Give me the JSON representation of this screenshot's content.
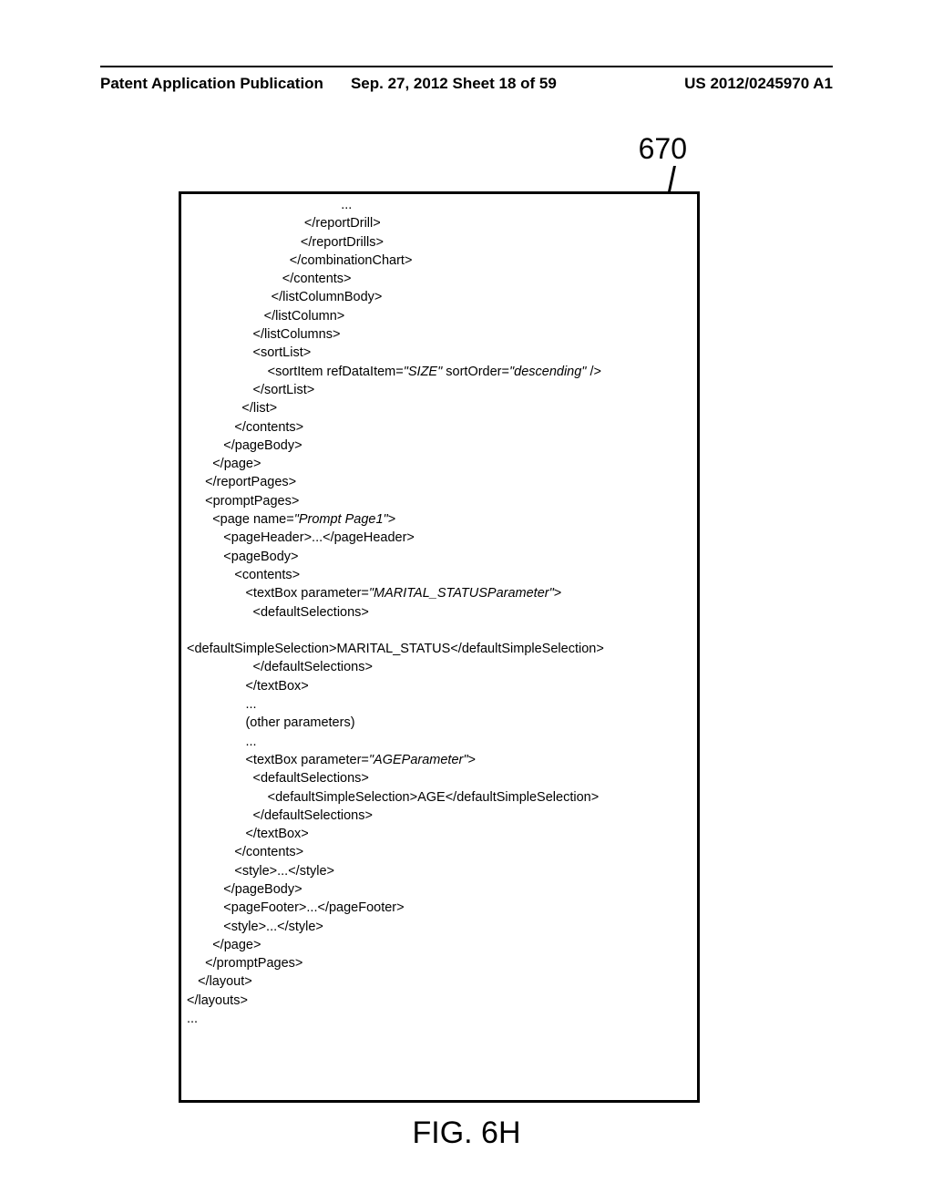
{
  "header": {
    "left": "Patent Application Publication",
    "center": "Sep. 27, 2012  Sheet 18 of 59",
    "right": "US 2012/0245970 A1"
  },
  "figure_number": "670",
  "figure_caption": "FIG. 6H",
  "code": {
    "lines": [
      {
        "indent": 270,
        "text": "..."
      },
      {
        "indent": 210,
        "text": "</reportDrill>"
      },
      {
        "indent": 200,
        "text": "</reportDrills>"
      },
      {
        "indent": 180,
        "text": "</combinationChart>"
      },
      {
        "indent": 168,
        "text": "</contents>"
      },
      {
        "indent": 150,
        "text": "</listColumnBody>"
      },
      {
        "indent": 136,
        "text": "</listColumn>"
      },
      {
        "indent": 120,
        "text": "</listColumns>"
      },
      {
        "indent": 120,
        "text": "<sortList>"
      },
      {
        "indent": 142,
        "parts": [
          {
            "t": "<sortItem refDataItem="
          },
          {
            "t": "\"SIZE\"",
            "i": true
          },
          {
            "t": " sortOrder="
          },
          {
            "t": "\"descending\"",
            "i": true
          },
          {
            "t": " />"
          }
        ]
      },
      {
        "indent": 120,
        "text": "</sortList>"
      },
      {
        "indent": 100,
        "text": "</list>"
      },
      {
        "indent": 84,
        "text": "</contents>"
      },
      {
        "indent": 66,
        "text": "</pageBody>"
      },
      {
        "indent": 48,
        "text": "</page>"
      },
      {
        "indent": 32,
        "text": "</reportPages>"
      },
      {
        "indent": 32,
        "text": "<promptPages>"
      },
      {
        "indent": 48,
        "parts": [
          {
            "t": "<page name="
          },
          {
            "t": "\"Prompt Page1\"",
            "i": true
          },
          {
            "t": ">"
          }
        ]
      },
      {
        "indent": 66,
        "text": "<pageHeader>...</pageHeader>"
      },
      {
        "indent": 66,
        "text": "<pageBody>"
      },
      {
        "indent": 84,
        "text": "<contents>"
      },
      {
        "indent": 102,
        "parts": [
          {
            "t": "<textBox parameter="
          },
          {
            "t": "\"MARITAL_STATUSParameter\"",
            "i": true
          },
          {
            "t": ">"
          }
        ]
      },
      {
        "indent": 120,
        "text": "<defaultSelections>"
      },
      {
        "indent": 0,
        "text": ""
      },
      {
        "indent": 2,
        "text": "<defaultSimpleSelection>MARITAL_STATUS</defaultSimpleSelection>"
      },
      {
        "indent": 120,
        "text": "</defaultSelections>"
      },
      {
        "indent": 102,
        "text": "</textBox>"
      },
      {
        "indent": 102,
        "text": "..."
      },
      {
        "indent": 102,
        "text": "(other parameters)"
      },
      {
        "indent": 102,
        "text": "..."
      },
      {
        "indent": 102,
        "parts": [
          {
            "t": "<textBox parameter="
          },
          {
            "t": "\"AGEParameter\"",
            "i": true
          },
          {
            "t": ">"
          }
        ]
      },
      {
        "indent": 120,
        "text": "<defaultSelections>"
      },
      {
        "indent": 142,
        "text": "<defaultSimpleSelection>AGE</defaultSimpleSelection>"
      },
      {
        "indent": 120,
        "text": "</defaultSelections>"
      },
      {
        "indent": 102,
        "text": "</textBox>"
      },
      {
        "indent": 84,
        "text": "</contents>"
      },
      {
        "indent": 84,
        "text": "<style>...</style>"
      },
      {
        "indent": 66,
        "text": "</pageBody>"
      },
      {
        "indent": 66,
        "text": "<pageFooter>...</pageFooter>"
      },
      {
        "indent": 66,
        "text": "<style>...</style>"
      },
      {
        "indent": 48,
        "text": "</page>"
      },
      {
        "indent": 32,
        "text": "</promptPages>"
      },
      {
        "indent": 18,
        "text": "</layout>"
      },
      {
        "indent": 0,
        "text": "</layouts>"
      },
      {
        "indent": 0,
        "text": "..."
      }
    ]
  }
}
